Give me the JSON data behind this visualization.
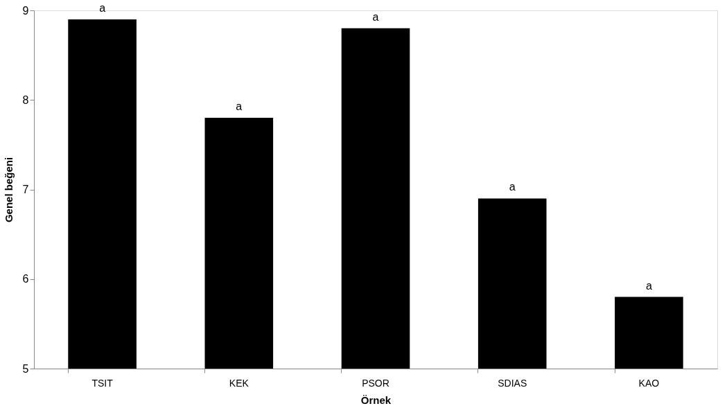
{
  "chart_data": {
    "type": "bar",
    "xlabel": "Örnek",
    "ylabel": "Genel beğeni",
    "categories": [
      "TSIT",
      "KEK",
      "PSOR",
      "SDIAS",
      "KAO"
    ],
    "values": [
      8.9,
      7.8,
      8.8,
      6.9,
      5.8
    ],
    "color": "#000000",
    "ylim": [
      5,
      9
    ],
    "yticks": [
      5,
      6,
      7,
      8,
      9
    ],
    "grid": false,
    "annotations": [
      {
        "text": "a",
        "x": "TSIT",
        "y": 8.9
      },
      {
        "text": "a",
        "x": "KEK",
        "y": 7.8
      },
      {
        "text": "a",
        "x": "PSOR",
        "y": 8.8
      },
      {
        "text": "a",
        "x": "SDIAS",
        "y": 6.9
      },
      {
        "text": "a",
        "x": "KAO",
        "y": 5.8
      }
    ]
  }
}
